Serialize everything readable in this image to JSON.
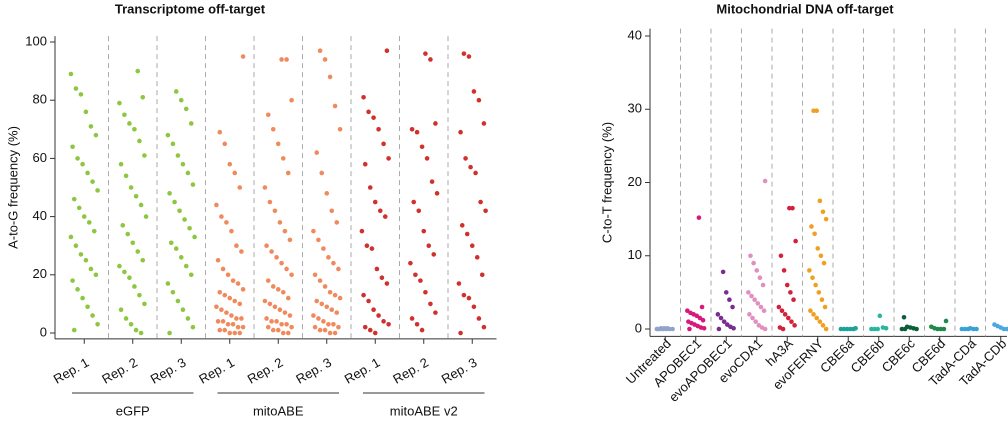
{
  "chart_data": [
    {
      "type": "strip",
      "title": "Transcriptome off-target",
      "ylabel": "A-to-G frequency (%)",
      "categories": [
        "Rep. 1",
        "Rep. 2",
        "Rep. 3",
        "Rep. 1",
        "Rep. 2",
        "Rep. 3",
        "Rep. 1",
        "Rep. 2",
        "Rep. 3"
      ],
      "groups": [
        "eGFP",
        "mitoABE",
        "mitoABE v2"
      ],
      "colors": [
        "#8dc63f",
        "#8dc63f",
        "#8dc63f",
        "#f08a5d",
        "#f08a5d",
        "#f08a5d",
        "#d0312d",
        "#d0312d",
        "#d0312d"
      ],
      "values": [
        [
          89,
          84,
          82,
          76,
          71,
          68,
          64,
          60,
          58,
          55,
          52,
          49,
          46,
          43,
          40,
          38,
          35,
          33,
          30,
          27,
          25,
          22,
          20,
          18,
          15,
          12,
          9,
          6,
          3,
          1
        ],
        [
          90,
          81,
          79,
          75,
          72,
          70,
          66,
          61,
          58,
          54,
          50,
          47,
          44,
          40,
          37,
          34,
          31,
          28,
          25,
          23,
          21,
          19,
          16,
          13,
          10,
          8,
          5,
          3,
          1,
          0
        ],
        [
          83,
          80,
          77,
          72,
          68,
          65,
          61,
          58,
          55,
          51,
          48,
          45,
          42,
          39,
          36,
          33,
          31,
          29,
          26,
          23,
          20,
          17,
          14,
          11,
          8,
          5,
          2,
          0
        ],
        [
          95,
          69,
          65,
          58,
          55,
          50,
          44,
          40,
          38,
          35,
          30,
          28,
          25,
          22,
          20,
          18,
          17,
          15,
          14,
          13,
          12,
          11,
          10,
          9,
          8,
          7,
          6,
          5,
          5,
          4,
          4,
          3,
          3,
          2,
          2,
          1,
          1,
          0,
          0,
          0
        ],
        [
          94,
          94,
          80,
          75,
          70,
          65,
          60,
          55,
          50,
          45,
          42,
          38,
          35,
          32,
          30,
          28,
          26,
          24,
          22,
          20,
          18,
          16,
          15,
          14,
          12,
          11,
          10,
          9,
          8,
          7,
          6,
          5,
          4,
          4,
          3,
          3,
          2,
          2,
          1,
          1,
          0,
          0
        ],
        [
          97,
          94,
          88,
          78,
          70,
          62,
          55,
          48,
          42,
          38,
          35,
          32,
          29,
          26,
          24,
          22,
          20,
          18,
          16,
          14,
          13,
          12,
          11,
          10,
          9,
          8,
          7,
          6,
          5,
          4,
          3,
          3,
          2,
          2,
          1,
          1,
          0,
          0
        ],
        [
          97,
          81,
          76,
          74,
          70,
          65,
          60,
          58,
          50,
          45,
          42,
          40,
          35,
          30,
          29,
          22,
          19,
          17,
          13,
          11,
          8,
          6,
          4,
          3,
          2,
          1,
          0
        ],
        [
          96,
          94,
          72,
          70,
          69,
          64,
          60,
          52,
          48,
          45,
          42,
          35,
          30,
          27,
          24,
          20,
          18,
          14,
          10,
          7,
          5,
          3,
          1
        ],
        [
          96,
          95,
          83,
          80,
          72,
          69,
          60,
          57,
          55,
          45,
          42,
          37,
          34,
          30,
          26,
          20,
          17,
          13,
          12,
          9,
          5,
          2,
          0
        ]
      ],
      "ylim": [
        -2,
        102
      ],
      "yticks": [
        0,
        20,
        40,
        60,
        80,
        100
      ]
    },
    {
      "type": "strip",
      "title": "Mitochondrial DNA off-target",
      "ylabel": "C-to-T frequency (%)",
      "categories": [
        "Untreated",
        "APOBEC1",
        "evoAPOBEC1",
        "evoCDA1",
        "hA3A",
        "evoFERNY",
        "CBE6a",
        "CBE6b",
        "CBE6c",
        "CBE6d",
        "TadA-CDa",
        "TadA-CDb"
      ],
      "colors": [
        "#8fa3cc",
        "#d6197a",
        "#7b2d8e",
        "#e08fc0",
        "#d4213a",
        "#f0a020",
        "#1aa39a",
        "#2ab5a0",
        "#0b5e3a",
        "#1d8a4a",
        "#3aa0d8",
        "#4aa8e0"
      ],
      "values": [
        [
          0,
          0,
          0,
          0,
          0,
          0,
          0,
          0.1,
          0.1,
          0.1
        ],
        [
          15.2,
          3,
          2.5,
          2.2,
          2,
          1.8,
          1.5,
          1.2,
          1,
          0.8,
          0.6,
          0.4,
          0.2,
          0.1,
          0
        ],
        [
          7.8,
          5,
          4,
          3,
          2,
          1.5,
          1,
          0.6,
          0.3,
          0.1,
          0
        ],
        [
          20.2,
          10,
          9,
          8,
          7,
          6,
          5,
          4.5,
          4,
          3.5,
          3,
          2.5,
          2,
          1.5,
          1,
          0.5,
          0.2,
          0
        ],
        [
          16.5,
          16.5,
          12,
          10,
          8,
          6,
          5,
          4,
          3,
          2.5,
          2,
          1.5,
          1,
          0.5,
          0.2,
          0
        ],
        [
          29.8,
          29.8,
          17.5,
          16,
          15,
          14,
          13,
          11,
          10,
          9,
          8,
          7,
          6,
          5,
          4,
          3,
          2.5,
          2,
          1.5,
          1,
          0.5,
          0
        ],
        [
          0.1,
          0,
          0,
          0,
          0,
          0
        ],
        [
          1.8,
          0.2,
          0.1,
          0,
          0,
          0
        ],
        [
          1.6,
          0.3,
          0.2,
          0.1,
          0,
          0,
          0
        ],
        [
          1.1,
          0.3,
          0.1,
          0,
          0,
          0
        ],
        [
          0.1,
          0,
          0,
          0,
          0,
          0
        ],
        [
          0.6,
          0.4,
          0.2,
          0,
          0
        ]
      ],
      "ylim": [
        -1,
        41
      ],
      "yticks": [
        0,
        10,
        20,
        30,
        40
      ]
    }
  ]
}
